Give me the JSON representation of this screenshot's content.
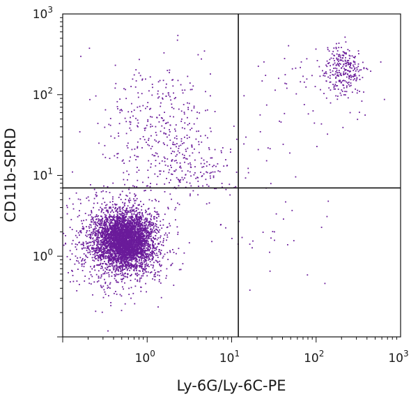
{
  "chart_data": {
    "type": "scatter",
    "title": "",
    "xlabel": "Ly-6G/Ly-6C-PE",
    "ylabel": "CD11b-SPRD",
    "x_scale": "log",
    "y_scale": "log",
    "xlim": [
      0.1,
      1000
    ],
    "ylim": [
      0.1,
      1000
    ],
    "x_ticks": [
      {
        "value": 1,
        "base": "10",
        "exp": "0"
      },
      {
        "value": 10,
        "base": "10",
        "exp": "1"
      },
      {
        "value": 100,
        "base": "10",
        "exp": "2"
      },
      {
        "value": 1000,
        "base": "10",
        "exp": "3"
      }
    ],
    "y_ticks": [
      {
        "value": 1,
        "base": "10",
        "exp": "0"
      },
      {
        "value": 10,
        "base": "10",
        "exp": "1"
      },
      {
        "value": 100,
        "base": "10",
        "exp": "2"
      },
      {
        "value": 1000,
        "base": "10",
        "exp": "3"
      }
    ],
    "quadrant_gates": {
      "x": 12,
      "y": 7
    },
    "grid": false,
    "legend": "none",
    "point_color": "#6a1b9a",
    "populations": [
      {
        "center": [
          0.55,
          1.6
        ],
        "spread_log": [
          0.16,
          0.17
        ],
        "count": 3600
      },
      {
        "center": [
          0.45,
          1.4
        ],
        "spread_log": [
          0.3,
          0.3
        ],
        "count": 1000
      },
      {
        "center": [
          1.2,
          40
        ],
        "spread_log": [
          0.32,
          0.4
        ],
        "count": 330
      },
      {
        "center": [
          3.5,
          12
        ],
        "spread_log": [
          0.3,
          0.2
        ],
        "count": 160
      },
      {
        "center": [
          210,
          210
        ],
        "spread_log": [
          0.12,
          0.17
        ],
        "count": 270
      },
      {
        "center": [
          60,
          90
        ],
        "spread_log": [
          0.45,
          0.4
        ],
        "count": 60
      },
      {
        "center": [
          25,
          2.5
        ],
        "spread_log": [
          0.4,
          0.3
        ],
        "count": 35
      }
    ]
  }
}
